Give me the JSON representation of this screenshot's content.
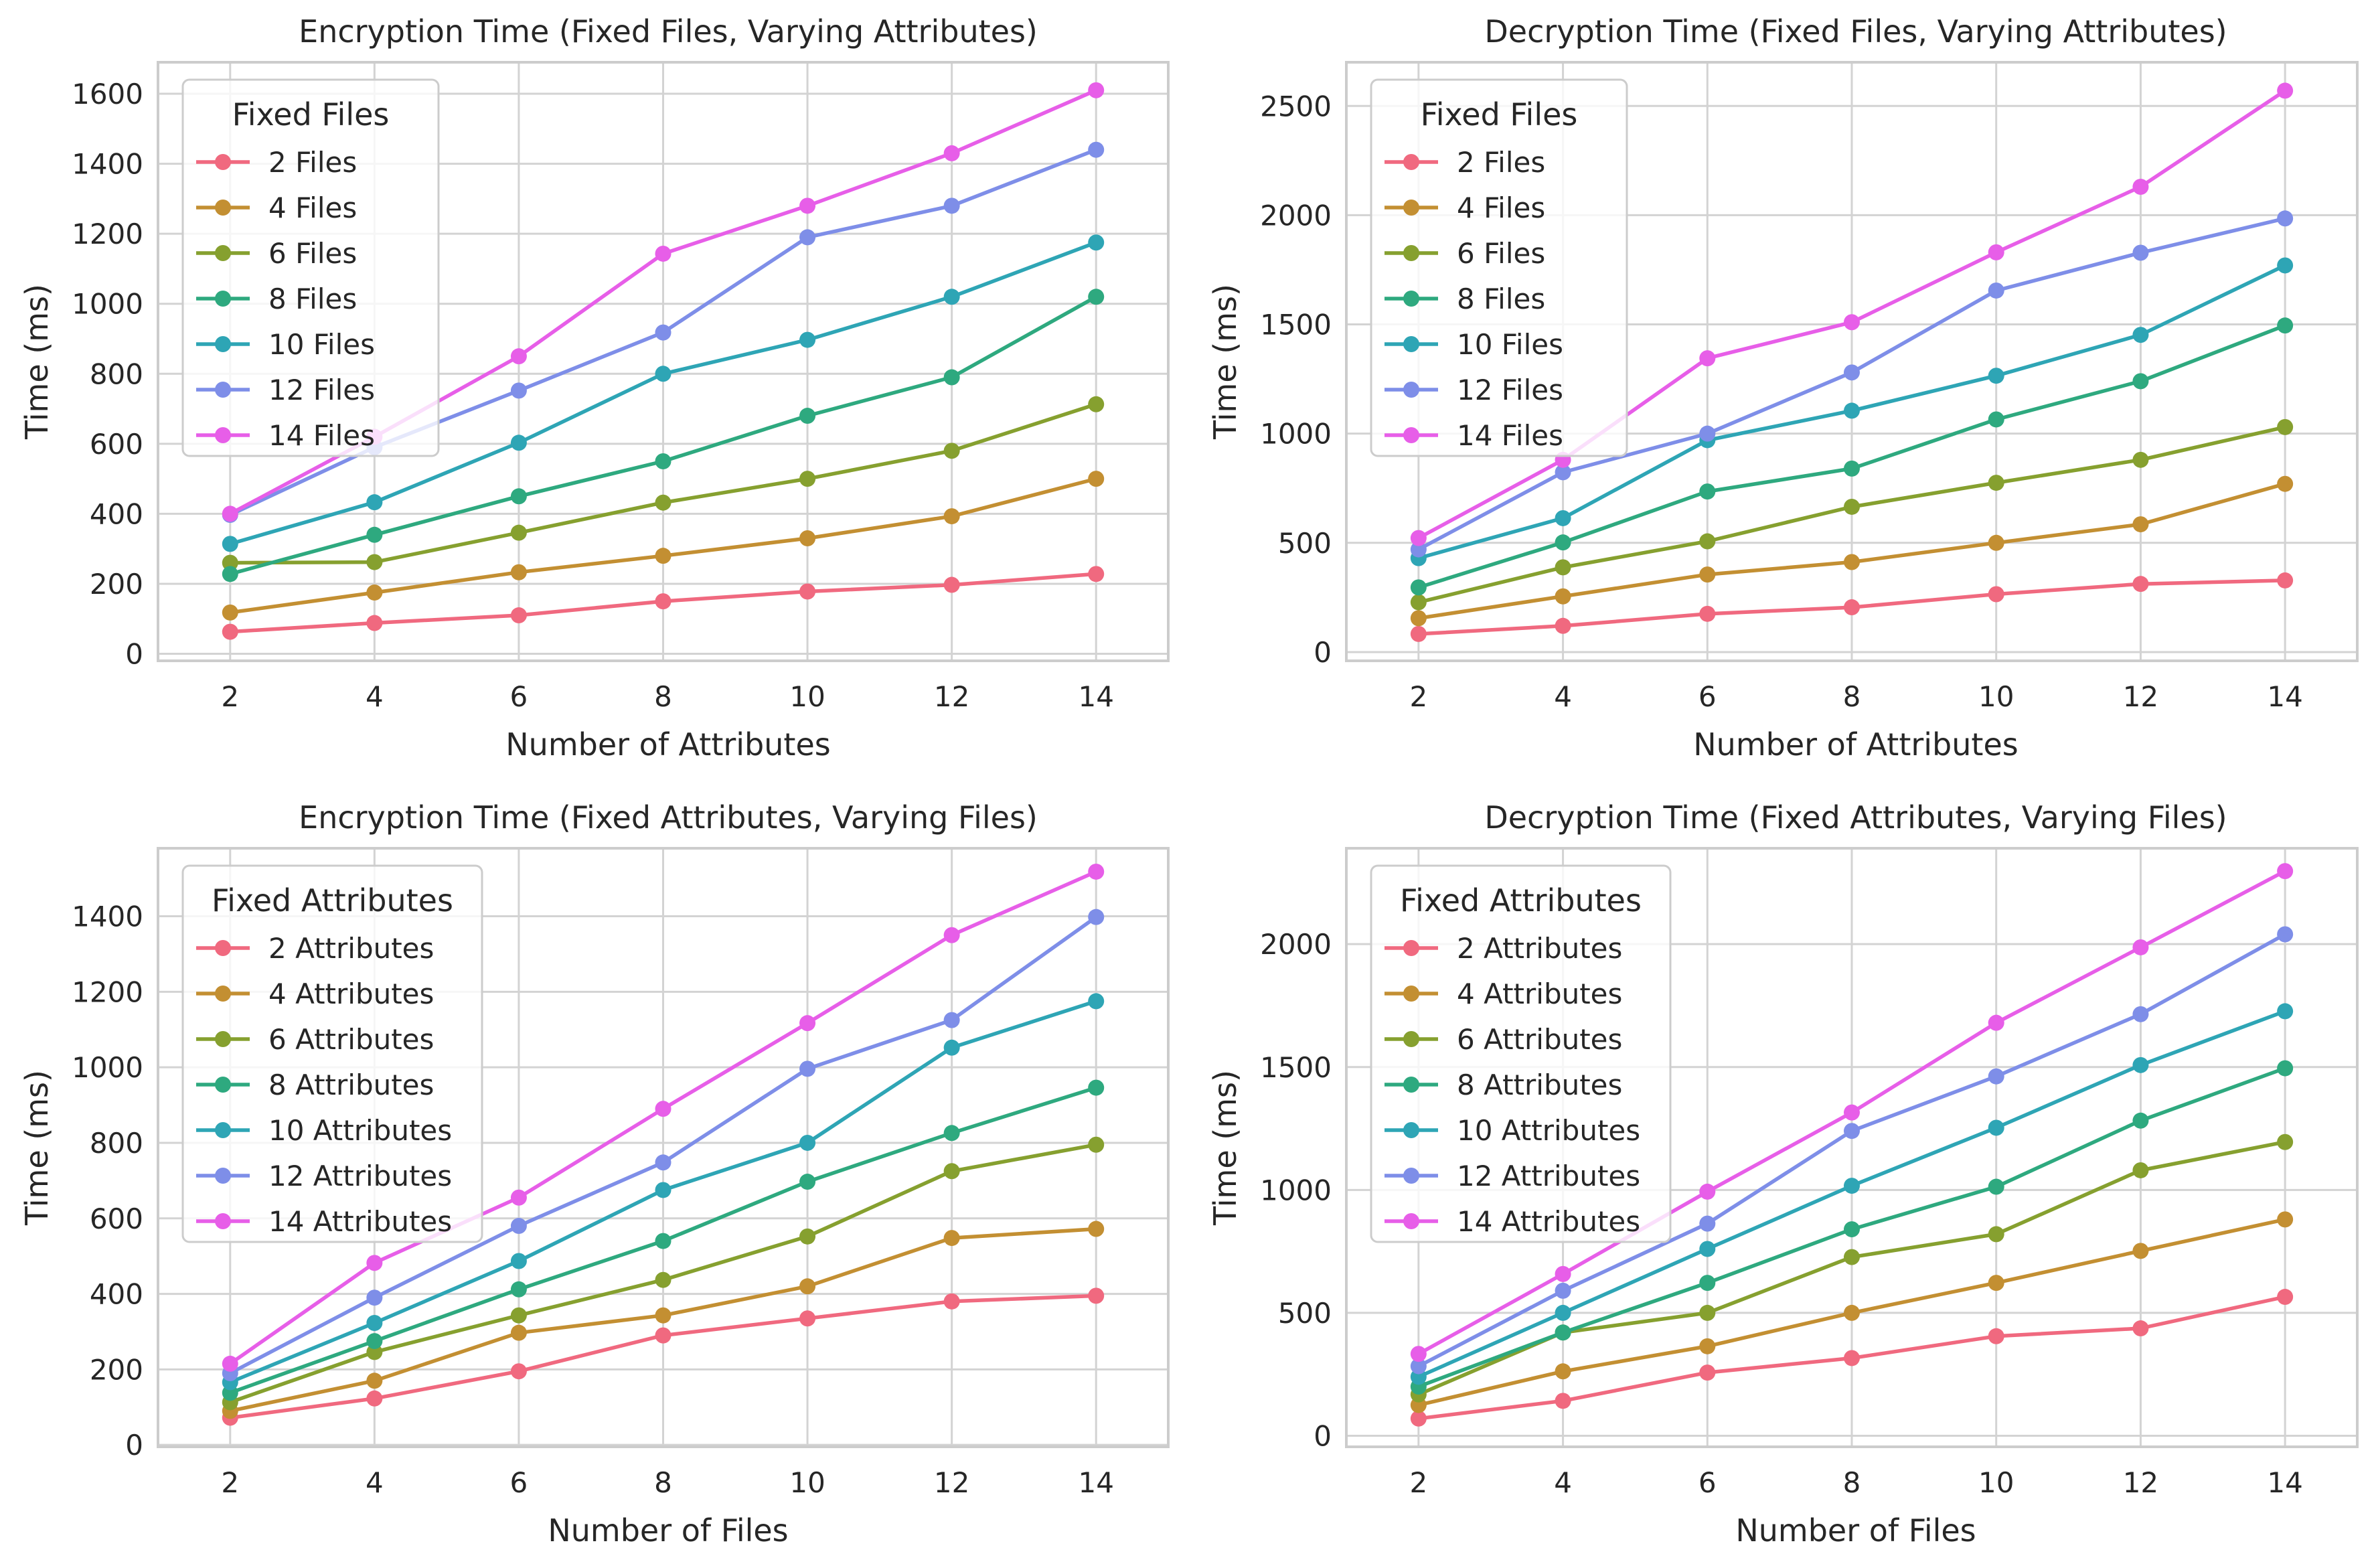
{
  "chart_data": [
    {
      "type": "line",
      "title": "Encryption Time (Fixed Files, Varying Attributes)",
      "xlabel": "Number of Attributes",
      "ylabel": "Time (ms)",
      "x": [
        2,
        4,
        6,
        8,
        10,
        12,
        14
      ],
      "xlim": [
        1,
        15
      ],
      "ylim": [
        -20,
        1690
      ],
      "yticks": [
        0,
        200,
        400,
        600,
        800,
        1000,
        1200,
        1400,
        1600
      ],
      "grid": true,
      "legend": {
        "title": "Fixed Files",
        "placement": "top-left"
      },
      "series": [
        {
          "name": "2 Files",
          "color": "#f0697f",
          "values": [
            63,
            88,
            110,
            150,
            178,
            197,
            228
          ]
        },
        {
          "name": "4 Files",
          "color": "#c38f32",
          "values": [
            118,
            175,
            233,
            280,
            330,
            393,
            500
          ]
        },
        {
          "name": "6 Files",
          "color": "#86a02f",
          "values": [
            260,
            262,
            346,
            432,
            500,
            580,
            713
          ]
        },
        {
          "name": "8 Files",
          "color": "#2ea97f",
          "values": [
            228,
            340,
            450,
            550,
            680,
            790,
            1020
          ]
        },
        {
          "name": "10 Files",
          "color": "#2ea5b5",
          "values": [
            314,
            433,
            603,
            800,
            897,
            1020,
            1175
          ]
        },
        {
          "name": "12 Files",
          "color": "#7e8ee8",
          "values": [
            397,
            590,
            752,
            918,
            1190,
            1280,
            1440
          ]
        },
        {
          "name": "14 Files",
          "color": "#e75ee8",
          "values": [
            400,
            620,
            850,
            1143,
            1280,
            1430,
            1610
          ]
        }
      ]
    },
    {
      "type": "line",
      "title": "Decryption Time (Fixed Files, Varying Attributes)",
      "xlabel": "Number of Attributes",
      "ylabel": "Time (ms)",
      "x": [
        2,
        4,
        6,
        8,
        10,
        12,
        14
      ],
      "xlim": [
        1,
        15
      ],
      "ylim": [
        -40,
        2700
      ],
      "yticks": [
        0,
        500,
        1000,
        1500,
        2000,
        2500
      ],
      "grid": true,
      "legend": {
        "title": "Fixed Files",
        "placement": "top-left"
      },
      "series": [
        {
          "name": "2 Files",
          "color": "#f0697f",
          "values": [
            83,
            120,
            175,
            205,
            265,
            312,
            328
          ]
        },
        {
          "name": "4 Files",
          "color": "#c38f32",
          "values": [
            155,
            255,
            355,
            412,
            500,
            585,
            770
          ]
        },
        {
          "name": "6 Files",
          "color": "#86a02f",
          "values": [
            228,
            388,
            507,
            665,
            775,
            880,
            1030
          ]
        },
        {
          "name": "8 Files",
          "color": "#2ea97f",
          "values": [
            296,
            502,
            735,
            840,
            1065,
            1240,
            1495
          ]
        },
        {
          "name": "10 Files",
          "color": "#2ea5b5",
          "values": [
            430,
            613,
            970,
            1105,
            1265,
            1452,
            1770
          ]
        },
        {
          "name": "12 Files",
          "color": "#7e8ee8",
          "values": [
            470,
            823,
            1000,
            1280,
            1655,
            1828,
            1985
          ]
        },
        {
          "name": "14 Files",
          "color": "#e75ee8",
          "values": [
            522,
            880,
            1345,
            1510,
            1830,
            2130,
            2570
          ]
        }
      ]
    },
    {
      "type": "line",
      "title": "Encryption Time (Fixed Attributes, Varying Files)",
      "xlabel": "Number of Files",
      "ylabel": "Time (ms)",
      "x": [
        2,
        4,
        6,
        8,
        10,
        12,
        14
      ],
      "xlim": [
        1,
        15
      ],
      "ylim": [
        -5,
        1580
      ],
      "yticks": [
        0,
        200,
        400,
        600,
        800,
        1000,
        1200,
        1400
      ],
      "grid": true,
      "legend": {
        "title": "Fixed Attributes",
        "placement": "top-left"
      },
      "series": [
        {
          "name": "2 Attributes",
          "color": "#f0697f",
          "values": [
            72,
            123,
            195,
            290,
            335,
            380,
            395
          ]
        },
        {
          "name": "4 Attributes",
          "color": "#c38f32",
          "values": [
            90,
            170,
            297,
            343,
            420,
            548,
            572
          ]
        },
        {
          "name": "6 Attributes",
          "color": "#86a02f",
          "values": [
            113,
            246,
            343,
            437,
            552,
            725,
            795
          ]
        },
        {
          "name": "8 Attributes",
          "color": "#2ea97f",
          "values": [
            138,
            275,
            412,
            540,
            697,
            826,
            946
          ]
        },
        {
          "name": "10 Attributes",
          "color": "#2ea5b5",
          "values": [
            166,
            323,
            487,
            675,
            800,
            1052,
            1175
          ]
        },
        {
          "name": "12 Attributes",
          "color": "#7e8ee8",
          "values": [
            190,
            390,
            580,
            748,
            996,
            1125,
            1398
          ]
        },
        {
          "name": "14 Attributes",
          "color": "#e75ee8",
          "values": [
            215,
            482,
            655,
            890,
            1117,
            1350,
            1518
          ]
        }
      ]
    },
    {
      "type": "line",
      "title": "Decryption Time (Fixed Attributes, Varying Files)",
      "xlabel": "Number of Files",
      "ylabel": "Time (ms)",
      "x": [
        2,
        4,
        6,
        8,
        10,
        12,
        14
      ],
      "xlim": [
        1,
        15
      ],
      "ylim": [
        -45,
        2390
      ],
      "yticks": [
        0,
        500,
        1000,
        1500,
        2000
      ],
      "grid": true,
      "legend": {
        "title": "Fixed Attributes",
        "placement": "top-left"
      },
      "series": [
        {
          "name": "2 Attributes",
          "color": "#f0697f",
          "values": [
            70,
            142,
            257,
            316,
            405,
            437,
            565
          ]
        },
        {
          "name": "4 Attributes",
          "color": "#c38f32",
          "values": [
            125,
            262,
            364,
            500,
            622,
            752,
            880
          ]
        },
        {
          "name": "6 Attributes",
          "color": "#86a02f",
          "values": [
            168,
            420,
            500,
            727,
            820,
            1080,
            1195
          ]
        },
        {
          "name": "8 Attributes",
          "color": "#2ea97f",
          "values": [
            200,
            420,
            622,
            840,
            1013,
            1282,
            1495
          ]
        },
        {
          "name": "10 Attributes",
          "color": "#2ea5b5",
          "values": [
            240,
            500,
            760,
            1017,
            1253,
            1508,
            1727
          ]
        },
        {
          "name": "12 Attributes",
          "color": "#7e8ee8",
          "values": [
            283,
            590,
            863,
            1240,
            1462,
            1715,
            2040
          ]
        },
        {
          "name": "14 Attributes",
          "color": "#e75ee8",
          "values": [
            333,
            658,
            993,
            1315,
            1680,
            1987,
            2297
          ]
        }
      ]
    }
  ]
}
